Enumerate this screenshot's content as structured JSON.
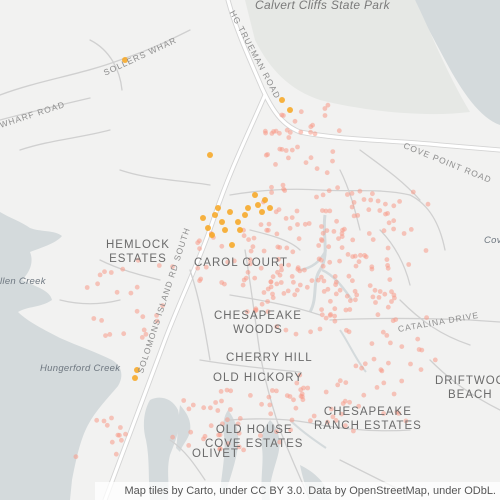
{
  "map": {
    "labels": {
      "park": "Calvert Cliffs State Park",
      "hemlock_estates": "HEMLOCK\nESTATES",
      "carol_court": "CAROL COURT",
      "chesapeake_woods": "CHESAPEAKE\nWOODS",
      "cherry_hill": "CHERRY HILL",
      "old_hickory": "OLD HICKORY",
      "old_house_cove": "OLD HOUSE\nCOVE ESTATES",
      "chesapeake_ranch": "CHESAPEAKE\nRANCH ESTATES",
      "driftwood_beach": "DRIFTWOO\nBEACH",
      "olivet": "OLIVET",
      "hungerford_creek": "Hungerford Creek",
      "allen_creek": "llen Creek",
      "cove_edge": "Cov",
      "sollers_wharf_road": "SOLLERS WHAR",
      "wharf_road": "WHARF ROAD",
      "hg_trueman_road": "HG TRUEMAN ROAD",
      "solomons_island_rd": "SOLOMONS ISLAND RD SOUTH",
      "cove_point_road": "COVE POINT ROAD",
      "catalina_drive": "CATALINA DRIVE"
    },
    "attribution": "Map tiles by Carto, under CC BY 3.0. Data by OpenStreetMap, under ODbL.",
    "colors": {
      "land": "#f2f2f1",
      "water": "#d4dadc",
      "park": "#e4e6e3",
      "road": "#ffffff",
      "road_outline": "#d6d6d6",
      "point_hot": "#f7a620",
      "point_cool": "#f79a88"
    }
  }
}
